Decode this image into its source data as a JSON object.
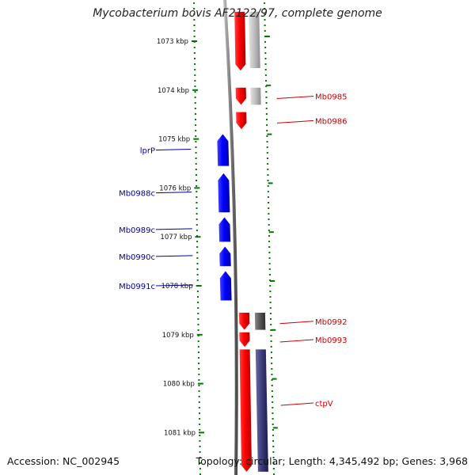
{
  "title": "Mycobacterium bovis AF2122/97, complete genome",
  "footer": {
    "accession": "Accession: NC_002945",
    "info": "Topology: circular; Length: 4,345,492 bp; Genes: 3,968"
  },
  "scale": {
    "start_kbp": 1072.4,
    "end_kbp": 1081.8,
    "ticks": [
      {
        "kbp": 1073,
        "label": "1073 kbp"
      },
      {
        "kbp": 1074,
        "label": "1074 kbp"
      },
      {
        "kbp": 1075,
        "label": "1075 kbp"
      },
      {
        "kbp": 1076,
        "label": "1076 kbp"
      },
      {
        "kbp": 1077,
        "label": "1077 kbp"
      },
      {
        "kbp": 1078,
        "label": "1078 kbp"
      },
      {
        "kbp": 1079,
        "label": "1079 kbp"
      },
      {
        "kbp": 1080,
        "label": "1080 kbp"
      },
      {
        "kbp": 1081,
        "label": "1081 kbp"
      }
    ]
  },
  "colors": {
    "forward_cds": "#ff0000",
    "reverse_cds": "#0000ff",
    "forward_label": "#cc0000",
    "reverse_label": "#000099",
    "ruler": "#007700",
    "backbone": "#888888",
    "gray_track": "#bbbbbb",
    "dark_gray_track": "#555555",
    "purple_track": "#3a3a7a"
  },
  "genes": [
    {
      "name": "",
      "strand": "+",
      "start_kbp": 1072.4,
      "end_kbp": 1073.6
    },
    {
      "name": "Mb0985",
      "strand": "+",
      "start_kbp": 1073.95,
      "end_kbp": 1074.3
    },
    {
      "name": "Mb0986",
      "strand": "+",
      "start_kbp": 1074.45,
      "end_kbp": 1074.8
    },
    {
      "name": "lprP",
      "strand": "-",
      "start_kbp": 1074.9,
      "end_kbp": 1075.55
    },
    {
      "name": "Mb0988c",
      "strand": "-",
      "start_kbp": 1075.7,
      "end_kbp": 1076.5
    },
    {
      "name": "Mb0989c",
      "strand": "-",
      "start_kbp": 1076.6,
      "end_kbp": 1077.1
    },
    {
      "name": "Mb0990c",
      "strand": "-",
      "start_kbp": 1077.2,
      "end_kbp": 1077.6
    },
    {
      "name": "Mb0991c",
      "strand": "-",
      "start_kbp": 1077.7,
      "end_kbp": 1078.3
    },
    {
      "name": "Mb0992",
      "strand": "+",
      "start_kbp": 1078.55,
      "end_kbp": 1078.9
    },
    {
      "name": "Mb0993",
      "strand": "+",
      "start_kbp": 1078.95,
      "end_kbp": 1079.25
    },
    {
      "name": "ctpV",
      "strand": "+",
      "start_kbp": 1079.3,
      "end_kbp": 1081.8
    }
  ],
  "feature_tracks": [
    {
      "color": "gray_track",
      "start_kbp": 1072.4,
      "end_kbp": 1073.55
    },
    {
      "color": "gray_track",
      "start_kbp": 1073.95,
      "end_kbp": 1074.3
    },
    {
      "color": "dark_gray_track",
      "start_kbp": 1078.55,
      "end_kbp": 1078.9
    },
    {
      "color": "purple_track",
      "start_kbp": 1079.3,
      "end_kbp": 1081.8
    }
  ]
}
